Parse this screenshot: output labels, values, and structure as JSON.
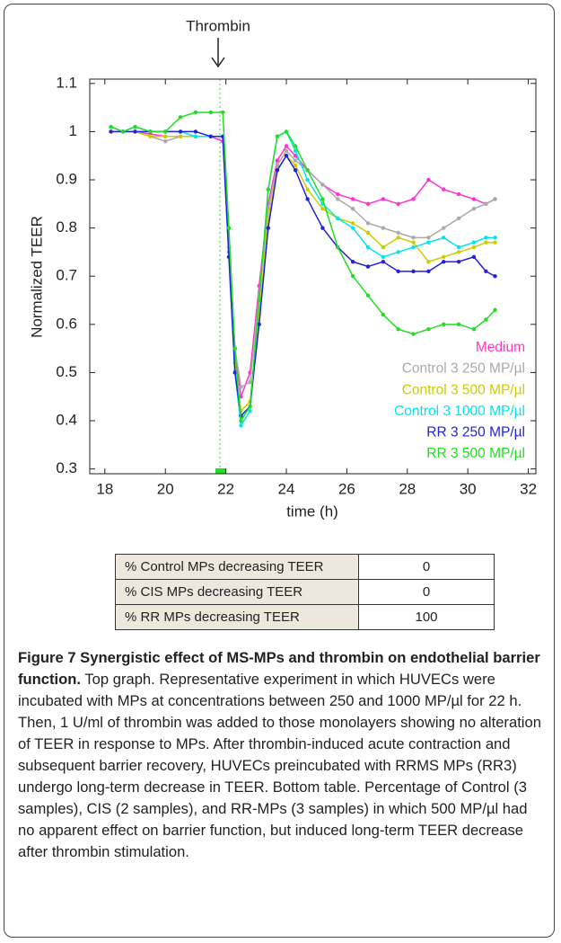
{
  "chart_data": {
    "type": "line",
    "annotation": "Thrombin",
    "xlabel": "time (h)",
    "ylabel": "Normalized TEER",
    "xlim": [
      17.5,
      32.25
    ],
    "ylim": [
      0.29,
      1.109
    ],
    "xticks": [
      18,
      20,
      22,
      24,
      26,
      28,
      30,
      32
    ],
    "yticks": [
      0.3,
      0.4,
      0.5,
      0.6,
      0.7,
      0.8,
      0.9,
      1,
      1.1
    ],
    "grid": false,
    "legend": "lower right",
    "x": [
      18.2,
      18.6,
      19.0,
      19.5,
      20,
      20.5,
      21,
      21.5,
      21.9,
      22.1,
      22.3,
      22.5,
      22.8,
      23.1,
      23.4,
      23.7,
      24.0,
      24.3,
      24.7,
      25.2,
      25.7,
      26.2,
      26.7,
      27.2,
      27.7,
      28.2,
      28.7,
      29.2,
      29.7,
      30.2,
      30.6,
      30.9
    ],
    "series": [
      {
        "name": "Medium",
        "color": "#ff33cc",
        "values": [
          1.0,
          1.0,
          1.0,
          0.995,
          0.99,
          0.99,
          0.99,
          0.99,
          0.98,
          0.75,
          0.55,
          0.45,
          0.5,
          0.68,
          0.85,
          0.94,
          0.97,
          0.95,
          0.92,
          0.89,
          0.87,
          0.86,
          0.85,
          0.86,
          0.85,
          0.86,
          0.9,
          0.88,
          0.87,
          0.86,
          0.85,
          0.86
        ]
      },
      {
        "name": "Control 3 250 MP/µl",
        "color": "#aaaaaa",
        "values": [
          1.01,
          1.0,
          1.0,
          0.99,
          0.98,
          0.99,
          0.99,
          0.99,
          0.99,
          0.76,
          0.55,
          0.47,
          0.48,
          0.66,
          0.84,
          0.93,
          0.96,
          0.94,
          0.92,
          0.89,
          0.86,
          0.84,
          0.81,
          0.8,
          0.79,
          0.78,
          0.78,
          0.8,
          0.82,
          0.84,
          0.85,
          0.86
        ]
      },
      {
        "name": "Control 3 500 MP/µl",
        "color": "#cccc00",
        "values": [
          1.0,
          1.0,
          1.0,
          0.99,
          0.99,
          0.99,
          0.99,
          0.99,
          0.99,
          0.74,
          0.52,
          0.42,
          0.44,
          0.62,
          0.82,
          0.92,
          0.95,
          0.93,
          0.88,
          0.84,
          0.82,
          0.81,
          0.79,
          0.76,
          0.78,
          0.77,
          0.73,
          0.74,
          0.75,
          0.76,
          0.77,
          0.77
        ]
      },
      {
        "name": "Control 3 1000 MP/µl",
        "color": "#00e5ee",
        "values": [
          1.01,
          1.0,
          1.01,
          1.0,
          1.0,
          1.0,
          0.99,
          0.99,
          0.99,
          0.74,
          0.5,
          0.39,
          0.42,
          0.65,
          0.88,
          0.99,
          1.0,
          0.96,
          0.9,
          0.85,
          0.82,
          0.8,
          0.76,
          0.74,
          0.75,
          0.76,
          0.77,
          0.78,
          0.76,
          0.77,
          0.78,
          0.78
        ]
      },
      {
        "name": "RR 3 250 MP/µl",
        "color": "#2222dd",
        "values": [
          1.0,
          1.0,
          1.0,
          1.0,
          1.0,
          1.0,
          1.0,
          0.99,
          0.99,
          0.74,
          0.5,
          0.41,
          0.43,
          0.6,
          0.8,
          0.92,
          0.95,
          0.92,
          0.86,
          0.8,
          0.76,
          0.73,
          0.72,
          0.73,
          0.71,
          0.71,
          0.71,
          0.73,
          0.73,
          0.74,
          0.71,
          0.7
        ]
      },
      {
        "name": "RR 3 500 MP/µl",
        "color": "#22dd22",
        "values": [
          1.01,
          1.0,
          1.01,
          1.0,
          1.0,
          1.03,
          1.04,
          1.04,
          1.04,
          0.8,
          0.55,
          0.4,
          0.43,
          0.65,
          0.88,
          0.99,
          1.0,
          0.97,
          0.92,
          0.86,
          0.76,
          0.7,
          0.66,
          0.62,
          0.59,
          0.58,
          0.59,
          0.6,
          0.6,
          0.59,
          0.61,
          0.63
        ]
      }
    ]
  },
  "table": {
    "rows": [
      [
        "% Control MPs decreasing TEER",
        "0"
      ],
      [
        "% CIS MPs decreasing TEER",
        "0"
      ],
      [
        "% RR MPs decreasing TEER",
        "100"
      ]
    ]
  },
  "caption": {
    "title": "Figure 7 Synergistic effect of MS-MPs and thrombin on endothelial barrier function.",
    "text": "Top graph. Representative experiment in which HUVECs were incubated with MPs at concentrations between 250 and 1000 MP/µl for 22 h. Then, 1 U/ml of thrombin was added to those monolayers showing no alteration of TEER in response to MPs. After thrombin-induced acute contraction and subsequent barrier recovery, HUVECs preincubated with RRMS MPs (RR3) undergo long-term decrease in TEER. Bottom table. Percentage of Control (3 samples), CIS (2 samples), and RR-MPs (3 samples) in which 500 MP/µl had no apparent effect on barrier function, but induced long-term TEER decrease after thrombin stimulation."
  }
}
